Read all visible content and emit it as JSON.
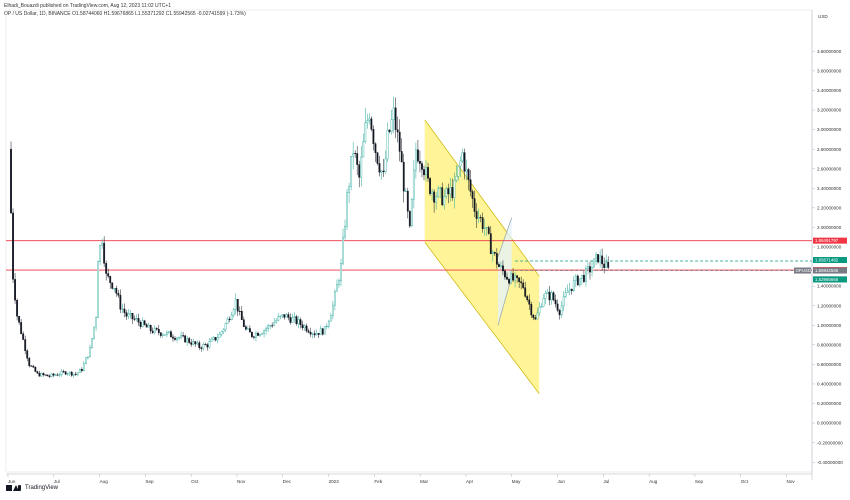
{
  "header": {
    "publisher": "Elhadi_Bouazdi published on TradingView.com, Aug 12, 2023 11:02 UTC+1",
    "pair": "OP / US Dollar, 1D, BINANCE  O1.58744060  H1.59676865  L1.55371292  C1.55942565  -0.02741599 (-1.73%)"
  },
  "footer": {
    "brand": "TradingView"
  },
  "colors": {
    "up": "#26a69a",
    "down": "#131722",
    "red_line": "#f23645",
    "channel_fill": "#fff176",
    "channel_border": "#c9b400",
    "small_channel_fill": "#e3f2fd",
    "green_dash": "#089981",
    "gray_dash": "#787b86"
  },
  "chart_data": {
    "type": "candlestick",
    "symbol": "OP / US Dollar",
    "interval": "1D",
    "exchange": "BINANCE",
    "currency": "USD",
    "ylim": [
      -0.5,
      4.1
    ],
    "y_ticks": [
      "3.80000000",
      "3.60000000",
      "3.40000000",
      "3.20000000",
      "3.00000000",
      "2.80000000",
      "2.60000000",
      "2.40000000",
      "2.20000000",
      "2.00000000",
      "1.80000000",
      "1.40000000",
      "1.20000000",
      "1.00000000",
      "0.80000000",
      "0.60000000",
      "0.40000000",
      "0.20000000",
      "0.00000000",
      "-0.20000000",
      "-0.40000000"
    ],
    "x_labels": [
      "Jun",
      "Jul",
      "Aug",
      "Sep",
      "Oct",
      "Nov",
      "Dec",
      "2023",
      "Feb",
      "Mar",
      "Apr",
      "May",
      "Jun",
      "Jul",
      "Aug",
      "Sep",
      "Oct",
      "Nov"
    ],
    "price_path": [
      [
        0,
        2.8
      ],
      [
        2,
        1.5
      ],
      [
        4,
        1.1
      ],
      [
        7,
        0.85
      ],
      [
        10,
        0.6
      ],
      [
        14,
        0.5
      ],
      [
        20,
        0.48
      ],
      [
        28,
        0.52
      ],
      [
        33,
        0.5
      ],
      [
        36,
        0.55
      ],
      [
        40,
        0.75
      ],
      [
        43,
        1.1
      ],
      [
        44,
        1.7
      ],
      [
        46,
        1.9
      ],
      [
        48,
        1.5
      ],
      [
        50,
        1.45
      ],
      [
        52,
        1.4
      ],
      [
        55,
        1.2
      ],
      [
        58,
        1.1
      ],
      [
        63,
        1.05
      ],
      [
        70,
        0.95
      ],
      [
        80,
        0.9
      ],
      [
        88,
        0.85
      ],
      [
        94,
        0.78
      ],
      [
        98,
        0.8
      ],
      [
        104,
        0.9
      ],
      [
        108,
        1.05
      ],
      [
        112,
        1.25
      ],
      [
        114,
        1.1
      ],
      [
        117,
        0.95
      ],
      [
        120,
        0.9
      ],
      [
        126,
        0.95
      ],
      [
        132,
        1.05
      ],
      [
        136,
        1.1
      ],
      [
        141,
        1.05
      ],
      [
        145,
        1.0
      ],
      [
        151,
        0.92
      ],
      [
        156,
        0.95
      ],
      [
        160,
        1.2
      ],
      [
        164,
        1.6
      ],
      [
        167,
        2.3
      ],
      [
        170,
        2.8
      ],
      [
        173,
        2.5
      ],
      [
        176,
        3.0
      ],
      [
        178,
        3.2
      ],
      [
        181,
        2.8
      ],
      [
        185,
        2.5
      ],
      [
        187,
        2.9
      ],
      [
        190,
        3.15
      ],
      [
        193,
        2.8
      ],
      [
        195,
        2.45
      ],
      [
        198,
        1.95
      ],
      [
        201,
        2.8
      ],
      [
        204,
        2.7
      ],
      [
        207,
        2.45
      ],
      [
        210,
        2.35
      ],
      [
        215,
        2.3
      ],
      [
        220,
        2.4
      ],
      [
        224,
        2.75
      ],
      [
        227,
        2.45
      ],
      [
        230,
        2.2
      ],
      [
        235,
        2.0
      ],
      [
        238,
        1.8
      ],
      [
        242,
        1.6
      ],
      [
        246,
        1.5
      ],
      [
        250,
        1.45
      ],
      [
        254,
        1.4
      ],
      [
        258,
        1.15
      ],
      [
        260,
        1.05
      ],
      [
        264,
        1.3
      ],
      [
        268,
        1.3
      ],
      [
        272,
        1.15
      ],
      [
        276,
        1.35
      ],
      [
        280,
        1.45
      ],
      [
        284,
        1.5
      ],
      [
        288,
        1.6
      ],
      [
        291,
        1.7
      ],
      [
        294,
        1.62
      ],
      [
        296,
        1.56
      ]
    ],
    "last_candle": {
      "open": 1.5874406,
      "high": 1.59676865,
      "low": 1.55371292,
      "close": 1.55942565,
      "change": -0.02741599,
      "change_pct": "-1.73%"
    },
    "horizontal_lines": [
      {
        "price": 1.86491797,
        "color": "#f23645",
        "label": "1.86491797"
      },
      {
        "price": 1.56425948,
        "color": "#f23645",
        "label": "1.56425948"
      }
    ],
    "price_tags": [
      {
        "label": "1.65671482",
        "price": 1.65671482,
        "color": "#089981"
      },
      {
        "label": "1.56425948",
        "price": 1.56425948,
        "color": "#f23645"
      },
      {
        "label": "1.55942565",
        "price": 1.55942565,
        "color": "#787b86"
      },
      {
        "label": "OPUSD",
        "price": 1.55942565,
        "color": "#787b86"
      },
      {
        "label": "12:57:55",
        "price": 1.51,
        "color": "#787b86"
      },
      {
        "label": "1.52965666",
        "price": 1.52965666,
        "color": "#089981"
      }
    ],
    "channels": [
      {
        "name": "descending channel",
        "upper": [
          [
            1.1,
            3.1
          ],
          [
            3.6,
            1.5
          ]
        ],
        "lower": [
          [
            1.1,
            1.85
          ],
          [
            3.6,
            0.3
          ]
        ]
      },
      {
        "name": "ascending channel",
        "upper": [
          [
            2.7,
            1.7
          ],
          [
            3.0,
            2.1
          ]
        ],
        "lower": [
          [
            2.7,
            1.0
          ],
          [
            3.0,
            1.5
          ]
        ]
      }
    ]
  }
}
